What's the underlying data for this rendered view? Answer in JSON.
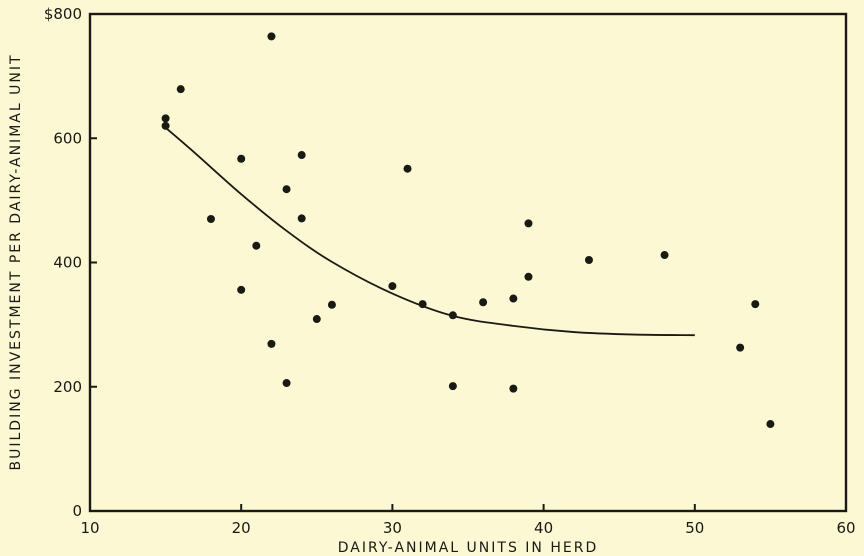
{
  "chart_data": {
    "type": "scatter",
    "title": "",
    "xlabel": "DAIRY-ANIMAL UNITS IN HERD",
    "ylabel": "BUILDING INVESTMENT PER DAIRY-ANIMAL UNIT",
    "xlim": [
      10,
      60
    ],
    "ylim": [
      0,
      800
    ],
    "x_ticks": [
      {
        "value": 10,
        "label": "10"
      },
      {
        "value": 20,
        "label": "20"
      },
      {
        "value": 30,
        "label": "30"
      },
      {
        "value": 40,
        "label": "40"
      },
      {
        "value": 50,
        "label": "50"
      },
      {
        "value": 60,
        "label": "60"
      }
    ],
    "y_ticks": [
      {
        "value": 0,
        "label": "0"
      },
      {
        "value": 200,
        "label": "200"
      },
      {
        "value": 400,
        "label": "400"
      },
      {
        "value": 600,
        "label": "600"
      },
      {
        "value": 800,
        "label": "$800"
      }
    ],
    "grid": false,
    "colors": {
      "background": "#fbf8d3",
      "ink": "#1a1a14"
    },
    "points": [
      {
        "x": 15,
        "y": 632
      },
      {
        "x": 15,
        "y": 620
      },
      {
        "x": 16,
        "y": 679
      },
      {
        "x": 18,
        "y": 470
      },
      {
        "x": 20,
        "y": 567
      },
      {
        "x": 20,
        "y": 356
      },
      {
        "x": 21,
        "y": 427
      },
      {
        "x": 22,
        "y": 764
      },
      {
        "x": 22,
        "y": 269
      },
      {
        "x": 23,
        "y": 518
      },
      {
        "x": 23,
        "y": 206
      },
      {
        "x": 24,
        "y": 573
      },
      {
        "x": 24,
        "y": 471
      },
      {
        "x": 25,
        "y": 309
      },
      {
        "x": 26,
        "y": 332
      },
      {
        "x": 30,
        "y": 362
      },
      {
        "x": 31,
        "y": 551
      },
      {
        "x": 32,
        "y": 333
      },
      {
        "x": 34,
        "y": 315
      },
      {
        "x": 34,
        "y": 201
      },
      {
        "x": 36,
        "y": 336
      },
      {
        "x": 38,
        "y": 342
      },
      {
        "x": 38,
        "y": 197
      },
      {
        "x": 39,
        "y": 463
      },
      {
        "x": 39,
        "y": 377
      },
      {
        "x": 43,
        "y": 404
      },
      {
        "x": 48,
        "y": 412
      },
      {
        "x": 53,
        "y": 263
      },
      {
        "x": 54,
        "y": 333
      },
      {
        "x": 55,
        "y": 140
      }
    ],
    "trend": {
      "x": [
        15,
        17,
        20,
        23,
        26,
        30,
        34,
        38,
        42,
        46,
        50
      ],
      "y": [
        617,
        575,
        510,
        451,
        401,
        350,
        314,
        298,
        288,
        284,
        283
      ]
    }
  }
}
